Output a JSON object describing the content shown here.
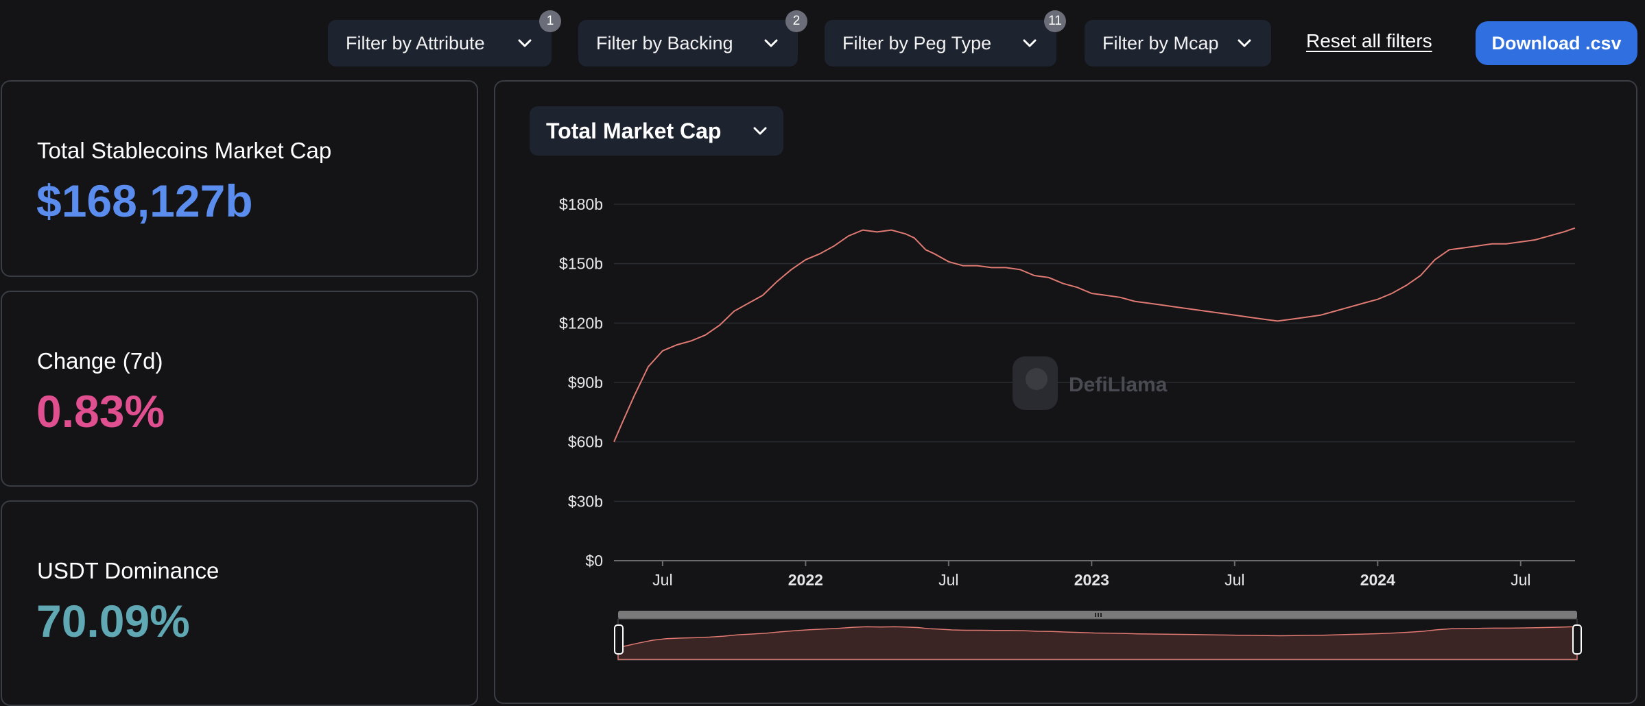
{
  "filters": [
    {
      "label": "Filter by Attribute",
      "badge": "1"
    },
    {
      "label": "Filter by Backing",
      "badge": "2"
    },
    {
      "label": "Filter by Peg Type",
      "badge": "11"
    },
    {
      "label": "Filter by Mcap",
      "badge": null
    }
  ],
  "actions": {
    "reset_label": "Reset all filters",
    "download_label": "Download .csv"
  },
  "stats": [
    {
      "label": "Total Stablecoins Market Cap",
      "value": "$168,127b",
      "color": "#5b8def"
    },
    {
      "label": "Change (7d)",
      "value": "0.83%",
      "color": "#e04f8f"
    },
    {
      "label": "USDT Dominance",
      "value": "70.09%",
      "color": "#5fa8b4"
    }
  ],
  "chart_selector": {
    "label": "Total Market Cap"
  },
  "watermark": "DefiLlama",
  "colors": {
    "line": "#e07a72",
    "accent": "#2f6fe0"
  },
  "chart_data": {
    "type": "line",
    "title": "Total Market Cap",
    "xlabel": "",
    "ylabel": "",
    "ylim": [
      0,
      180
    ],
    "x_range": [
      2021.33,
      2024.69
    ],
    "y_ticks": [
      {
        "value": 0,
        "label": "$0"
      },
      {
        "value": 30,
        "label": "$30b"
      },
      {
        "value": 60,
        "label": "$60b"
      },
      {
        "value": 90,
        "label": "$90b"
      },
      {
        "value": 120,
        "label": "$120b"
      },
      {
        "value": 150,
        "label": "$150b"
      },
      {
        "value": 180,
        "label": "$180b"
      }
    ],
    "x_ticks": [
      {
        "value": 2021.5,
        "label": "Jul",
        "bold": false
      },
      {
        "value": 2022.0,
        "label": "2022",
        "bold": true
      },
      {
        "value": 2022.5,
        "label": "Jul",
        "bold": false
      },
      {
        "value": 2023.0,
        "label": "2023",
        "bold": true
      },
      {
        "value": 2023.5,
        "label": "Jul",
        "bold": false
      },
      {
        "value": 2024.0,
        "label": "2024",
        "bold": true
      },
      {
        "value": 2024.5,
        "label": "Jul",
        "bold": false
      }
    ],
    "series": [
      {
        "name": "Total Market Cap",
        "x": [
          2021.33,
          2021.36,
          2021.4,
          2021.45,
          2021.5,
          2021.55,
          2021.6,
          2021.65,
          2021.7,
          2021.75,
          2021.8,
          2021.85,
          2021.9,
          2021.95,
          2022.0,
          2022.05,
          2022.1,
          2022.15,
          2022.2,
          2022.25,
          2022.3,
          2022.35,
          2022.38,
          2022.42,
          2022.45,
          2022.5,
          2022.55,
          2022.6,
          2022.65,
          2022.7,
          2022.75,
          2022.8,
          2022.85,
          2022.9,
          2022.95,
          2023.0,
          2023.05,
          2023.1,
          2023.15,
          2023.2,
          2023.25,
          2023.3,
          2023.35,
          2023.4,
          2023.45,
          2023.5,
          2023.55,
          2023.6,
          2023.65,
          2023.7,
          2023.75,
          2023.8,
          2023.85,
          2023.9,
          2023.95,
          2024.0,
          2024.05,
          2024.1,
          2024.15,
          2024.2,
          2024.25,
          2024.3,
          2024.35,
          2024.4,
          2024.45,
          2024.5,
          2024.55,
          2024.6,
          2024.65,
          2024.69
        ],
        "y": [
          60,
          70,
          83,
          98,
          106,
          109,
          111,
          114,
          119,
          126,
          130,
          134,
          141,
          147,
          152,
          155,
          159,
          164,
          167,
          166,
          167,
          165,
          163,
          157,
          155,
          151,
          149,
          149,
          148,
          148,
          147,
          144,
          143,
          140,
          138,
          135,
          134,
          133,
          131,
          130,
          129,
          128,
          127,
          126,
          125,
          124,
          123,
          122,
          121,
          122,
          123,
          124,
          126,
          128,
          130,
          132,
          135,
          139,
          144,
          152,
          157,
          158,
          159,
          160,
          160,
          161,
          162,
          164,
          166,
          168
        ]
      }
    ]
  }
}
